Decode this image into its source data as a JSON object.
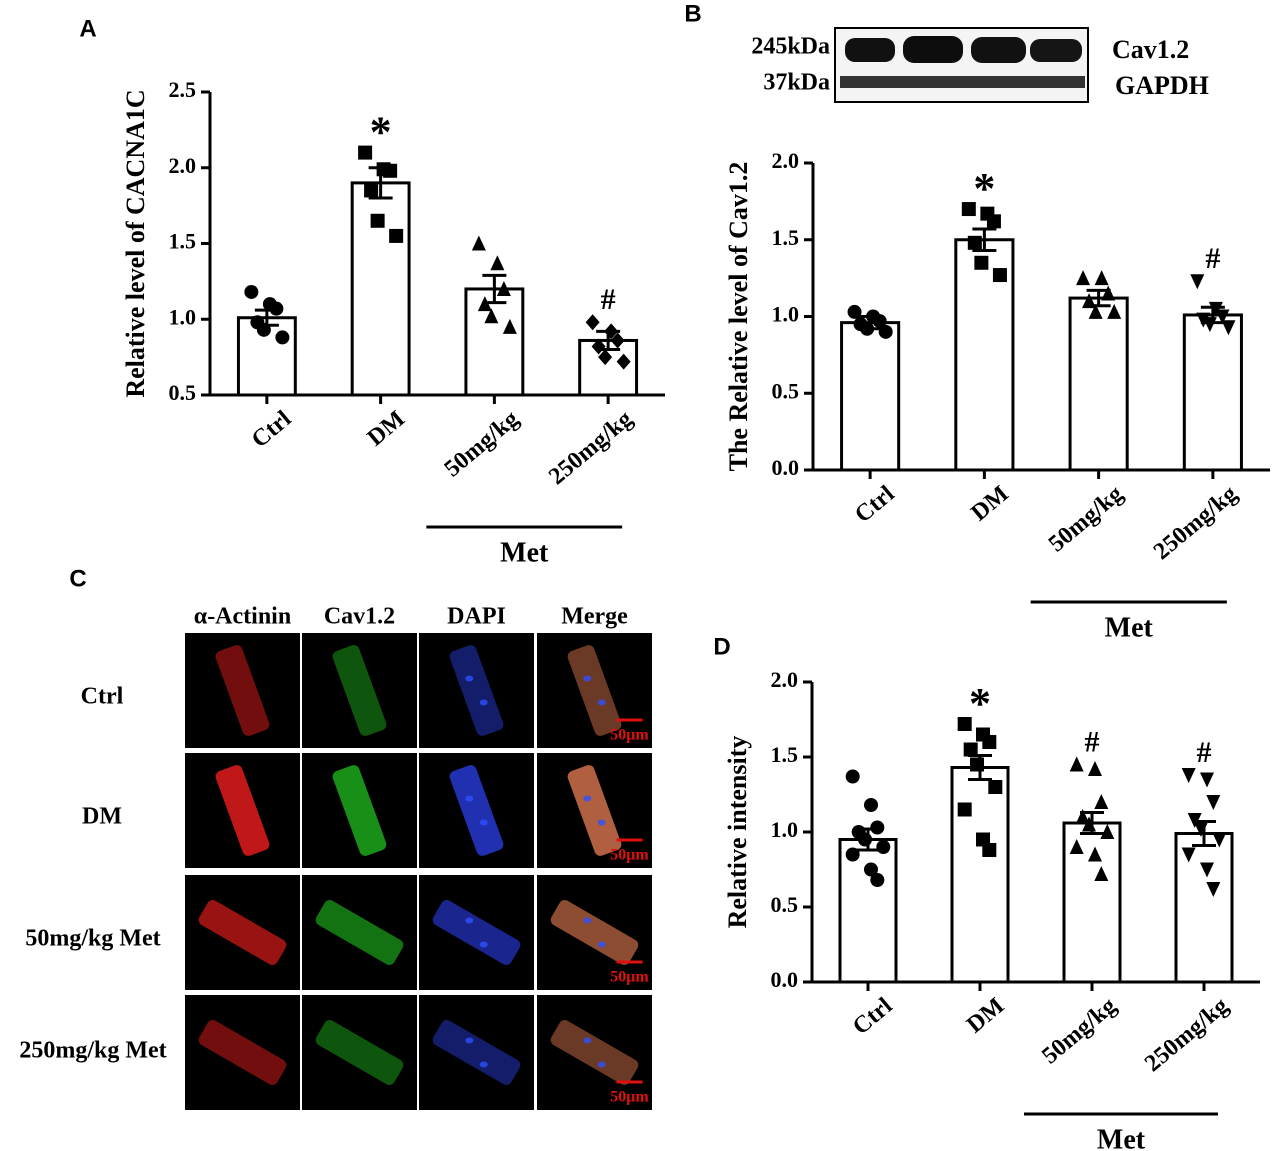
{
  "chart_data": [
    {
      "type": "bar",
      "panel": "A",
      "ylabel": "Relative level of CACNA1C",
      "categories": [
        "Ctrl",
        "DM",
        "50mg/kg",
        "250mg/kg"
      ],
      "group_label": "Met",
      "values": [
        1.01,
        1.9,
        1.2,
        0.86
      ],
      "errors": [
        0.05,
        0.1,
        0.09,
        0.06
      ],
      "points": [
        [
          1.18,
          1.1,
          1.07,
          0.98,
          0.93,
          0.88
        ],
        [
          2.1,
          1.99,
          1.98,
          1.85,
          1.65,
          1.55
        ],
        [
          1.5,
          1.37,
          1.2,
          1.1,
          1.02,
          0.95
        ],
        [
          0.98,
          0.92,
          0.86,
          0.82,
          0.75,
          0.72
        ]
      ],
      "markers": [
        "circle",
        "square",
        "triangle",
        "diamond"
      ],
      "annotations": [
        null,
        "*",
        null,
        "#"
      ],
      "color": "#ffffff",
      "ylim": [
        0.5,
        2.5
      ],
      "yticks": [
        0.5,
        {
          "value": 1,
          "label": "1.0"
        },
        1.5,
        {
          "value": 2,
          "label": "2.0"
        },
        2.5
      ]
    },
    {
      "type": "bar",
      "panel": "B",
      "ylabel": "The Relative level of Cav1.2",
      "categories": [
        "Ctrl",
        "DM",
        "50mg/kg",
        "250mg/kg"
      ],
      "group_label": "Met",
      "values": [
        0.96,
        1.5,
        1.12,
        1.01
      ],
      "errors": [
        0.04,
        0.07,
        0.05,
        0.05
      ],
      "points": [
        [
          1.03,
          1.0,
          0.97,
          0.95,
          0.92,
          0.9
        ],
        [
          1.7,
          1.67,
          1.62,
          1.48,
          1.35,
          1.27
        ],
        [
          1.25,
          1.25,
          1.15,
          1.1,
          1.03,
          1.03
        ],
        [
          1.23,
          1.05,
          1.0,
          0.98,
          0.95,
          0.93
        ]
      ],
      "markers": [
        "circle",
        "square",
        "triangle",
        "triangle-down"
      ],
      "annotations": [
        null,
        "*",
        null,
        "#"
      ],
      "color": "#ffffff",
      "ylim": [
        0,
        2
      ],
      "yticks": [
        {
          "value": 0,
          "label": "0.0"
        },
        0.5,
        {
          "value": 1,
          "label": "1.0"
        },
        1.5,
        {
          "value": 2,
          "label": "2.0"
        }
      ]
    },
    {
      "type": "bar",
      "panel": "D",
      "ylabel": "Relative intensity",
      "categories": [
        "Ctrl",
        "DM",
        "50mg/kg",
        "250mg/kg"
      ],
      "group_label": "Met",
      "values": [
        0.95,
        1.43,
        1.06,
        0.99
      ],
      "errors": [
        0.07,
        0.08,
        0.07,
        0.08
      ],
      "points": [
        [
          1.37,
          1.18,
          1.03,
          1.0,
          0.95,
          0.9,
          0.85,
          0.75,
          0.68
        ],
        [
          1.72,
          1.65,
          1.6,
          1.55,
          1.45,
          1.3,
          1.15,
          0.95,
          0.88
        ],
        [
          1.45,
          1.42,
          1.2,
          1.1,
          1.05,
          1.0,
          0.9,
          0.85,
          0.72
        ],
        [
          1.38,
          1.35,
          1.2,
          1.08,
          1.02,
          0.95,
          0.85,
          0.75,
          0.62
        ]
      ],
      "markers": [
        "circle",
        "square",
        "triangle",
        "triangle-down"
      ],
      "annotations": [
        null,
        "*",
        "#",
        "#"
      ],
      "color": "#ffffff",
      "ylim": [
        0,
        2
      ],
      "yticks": [
        {
          "value": 0,
          "label": "0.0"
        },
        0.5,
        {
          "value": 1,
          "label": "1.0"
        },
        1.5,
        {
          "value": 2,
          "label": "2.0"
        }
      ]
    }
  ],
  "blot": {
    "left_labels": [
      "245kDa",
      "37kDa"
    ],
    "right_labels": [
      "Cav1.2",
      "GAPDH"
    ]
  },
  "panel_c": {
    "label": "C",
    "columns": [
      "α-Actinin",
      "Cav1.2",
      "DAPI",
      "Merge"
    ],
    "rows": [
      "Ctrl",
      "DM",
      "50mg/kg Met",
      "250mg/kg Met"
    ],
    "scale_label": "50μm"
  }
}
